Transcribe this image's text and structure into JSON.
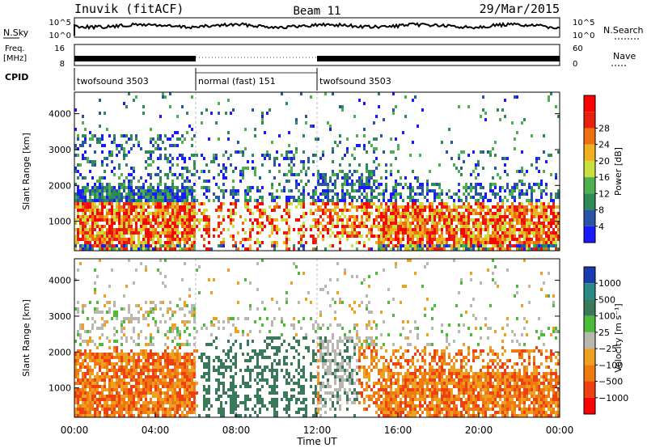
{
  "header": {
    "station": "Inuvik (fitACF)",
    "beam": "Beam 11",
    "date": "29/Mar/2015"
  },
  "top_panels": {
    "nsky_label": "N.Sky",
    "nsearch_label": "N.Search",
    "nsky_ticks": [
      "10^5",
      "10^0"
    ],
    "freq_label_line1": "Freq.",
    "freq_label_line2": "[MHz]",
    "freq_ticks": [
      "16",
      "8"
    ],
    "nave_label": "Nave",
    "nave_ticks": [
      "60",
      "0"
    ],
    "cpid_label": "CPID"
  },
  "cpid_segments": [
    {
      "label": "twofsound 3503",
      "start_hour": 0,
      "end_hour": 6
    },
    {
      "label": "normal (fast) 151",
      "start_hour": 6,
      "end_hour": 12
    },
    {
      "label": "twofsound 3503",
      "start_hour": 12,
      "end_hour": 24
    }
  ],
  "colors": {
    "power_scale": [
      "#1a1aff",
      "#2a54a8",
      "#2e8a57",
      "#4fb04f",
      "#c8e040",
      "#f0b020",
      "#f07010",
      "#e82010",
      "#ff0000"
    ],
    "velocity_scale": [
      "#1a3ab0",
      "#2a8a8a",
      "#3a7a5a",
      "#4cbb3a",
      "#b8b8b0",
      "#f0a020",
      "#ee7a10",
      "#ee4010",
      "#ff0000"
    ]
  },
  "chart_data": [
    {
      "type": "heatmap",
      "name": "power",
      "ylabel": "Slant Range [km]",
      "ylim": [
        180,
        4600
      ],
      "xlim_hours": [
        0,
        24
      ],
      "yticks": [
        1000,
        2000,
        3000,
        4000
      ],
      "colorbar_label": "Power [dB]",
      "colorbar_ticks": [
        "4",
        "8",
        "12",
        "16",
        "20",
        "24",
        "28"
      ]
    },
    {
      "type": "heatmap",
      "name": "velocity",
      "ylabel": "Slant Range [km]",
      "ylim": [
        180,
        4600
      ],
      "xlim_hours": [
        0,
        24
      ],
      "yticks": [
        1000,
        2000,
        3000,
        4000
      ],
      "colorbar_label": "Velocity [m s⁻¹]",
      "colorbar_ticks": [
        "1000",
        "500",
        "100",
        "25",
        "−25",
        "−100",
        "−500",
        "−1000"
      ]
    }
  ],
  "xaxis": {
    "ticks": [
      "00:00",
      "04:00",
      "08:00",
      "12:00",
      "16:00",
      "20:00",
      "00:00"
    ],
    "label": "Time UT"
  }
}
